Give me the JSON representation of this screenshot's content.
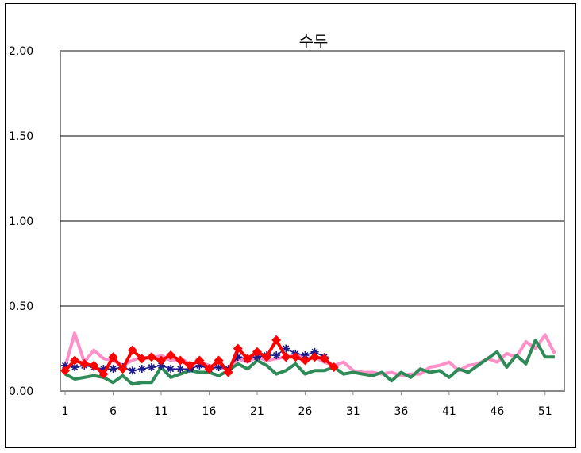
{
  "chart_data": {
    "type": "line",
    "title": "수두",
    "xlabel": "",
    "ylabel": "",
    "ylim": [
      0,
      2
    ],
    "xlim": [
      1,
      53
    ],
    "y_ticks": [
      "0.00",
      "0.50",
      "1.00",
      "1.50",
      "2.00"
    ],
    "x_ticks": [
      "1",
      "6",
      "11",
      "16",
      "21",
      "26",
      "31",
      "36",
      "41",
      "46",
      "51"
    ],
    "grid": true,
    "legend": "none",
    "series": [
      {
        "color": "#ff8fc8",
        "marker": "none",
        "x": [
          1,
          2,
          3,
          4,
          5,
          6,
          7,
          8,
          9,
          10,
          11,
          12,
          13,
          14,
          15,
          16,
          17,
          18,
          19,
          20,
          21,
          22,
          23,
          24,
          25,
          26,
          27,
          28,
          29,
          30,
          31,
          32,
          33,
          34,
          35,
          36,
          37,
          38,
          39,
          40,
          41,
          42,
          43,
          44,
          45,
          46,
          47,
          48,
          49,
          50,
          51,
          52
        ],
        "values": [
          0.14,
          0.34,
          0.17,
          0.24,
          0.19,
          0.18,
          0.15,
          0.18,
          0.2,
          0.19,
          0.21,
          0.18,
          0.19,
          0.16,
          0.17,
          0.15,
          0.14,
          0.13,
          0.19,
          0.17,
          0.2,
          0.18,
          0.19,
          0.2,
          0.21,
          0.19,
          0.2,
          0.17,
          0.15,
          0.17,
          0.12,
          0.11,
          0.11,
          0.1,
          0.11,
          0.09,
          0.1,
          0.1,
          0.14,
          0.15,
          0.17,
          0.12,
          0.15,
          0.16,
          0.19,
          0.17,
          0.22,
          0.2,
          0.29,
          0.25,
          0.33,
          0.22
        ]
      },
      {
        "color": "#2e8b57",
        "marker": "none",
        "x": [
          1,
          2,
          3,
          4,
          5,
          6,
          7,
          8,
          9,
          10,
          11,
          12,
          13,
          14,
          15,
          16,
          17,
          18,
          19,
          20,
          21,
          22,
          23,
          24,
          25,
          26,
          27,
          28,
          29,
          30,
          31,
          32,
          33,
          34,
          35,
          36,
          37,
          38,
          39,
          40,
          41,
          42,
          43,
          44,
          45,
          46,
          47,
          48,
          49,
          50,
          51,
          52
        ],
        "values": [
          0.1,
          0.07,
          0.08,
          0.09,
          0.08,
          0.05,
          0.09,
          0.04,
          0.05,
          0.05,
          0.14,
          0.08,
          0.1,
          0.12,
          0.11,
          0.11,
          0.09,
          0.12,
          0.16,
          0.13,
          0.18,
          0.15,
          0.1,
          0.12,
          0.16,
          0.1,
          0.12,
          0.12,
          0.14,
          0.1,
          0.11,
          0.1,
          0.09,
          0.11,
          0.06,
          0.11,
          0.08,
          0.13,
          0.11,
          0.12,
          0.08,
          0.13,
          0.11,
          0.15,
          0.19,
          0.23,
          0.14,
          0.21,
          0.16,
          0.3,
          0.2,
          0.2
        ]
      },
      {
        "color": "#1a1a8c",
        "marker": "star",
        "x": [
          1,
          2,
          3,
          4,
          5,
          6,
          7,
          8,
          9,
          10,
          11,
          12,
          13,
          14,
          15,
          16,
          17,
          18,
          19,
          20,
          21,
          22,
          23,
          24,
          25,
          26,
          27,
          28
        ],
        "values": [
          0.15,
          0.14,
          0.15,
          0.14,
          0.13,
          0.13,
          0.14,
          0.12,
          0.13,
          0.14,
          0.15,
          0.13,
          0.13,
          0.13,
          0.15,
          0.13,
          0.14,
          0.13,
          0.2,
          0.19,
          0.2,
          0.21,
          0.21,
          0.25,
          0.22,
          0.21,
          0.23,
          0.2
        ]
      },
      {
        "color": "#ff0000",
        "marker": "diamond",
        "x": [
          1,
          2,
          3,
          4,
          5,
          6,
          7,
          8,
          9,
          10,
          11,
          12,
          13,
          14,
          15,
          16,
          17,
          18,
          19,
          20,
          21,
          22,
          23,
          24,
          25,
          26,
          27,
          28,
          29
        ],
        "values": [
          0.12,
          0.18,
          0.16,
          0.15,
          0.1,
          0.2,
          0.13,
          0.24,
          0.19,
          0.2,
          0.18,
          0.21,
          0.18,
          0.15,
          0.18,
          0.13,
          0.18,
          0.11,
          0.25,
          0.19,
          0.23,
          0.2,
          0.3,
          0.2,
          0.2,
          0.18,
          0.2,
          0.19,
          0.14
        ]
      }
    ]
  }
}
